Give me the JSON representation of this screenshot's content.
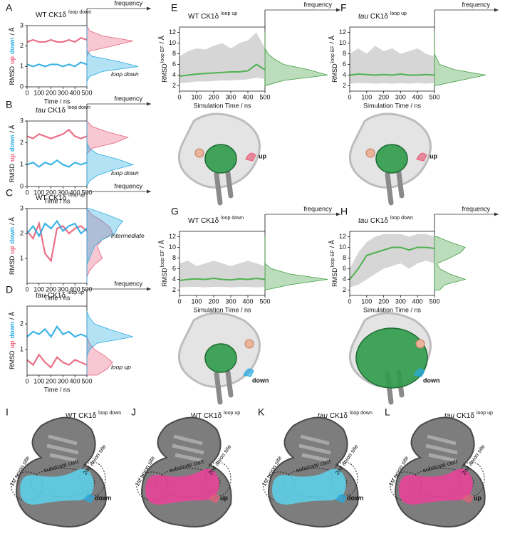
{
  "chart_data": [
    {
      "panel": "A",
      "type": "line",
      "title": {
        "main": "WT CK1δ",
        "sup": "loop down"
      },
      "ylabel": {
        "main": "RMSD",
        "unit": "/ Å"
      },
      "xlabel": "Time / ns",
      "frequency_label": "frequency",
      "annotation": "loop down",
      "x": [
        0,
        50,
        100,
        150,
        200,
        250,
        300,
        350,
        400,
        450,
        500
      ],
      "xlim": [
        0,
        500
      ],
      "xticks": [
        0,
        100,
        200,
        300,
        400,
        500
      ],
      "ylim": [
        0,
        3
      ],
      "yticks": [
        0,
        1,
        2,
        3
      ],
      "density_at": [
        0,
        0.25,
        0.5,
        0.75,
        1,
        1.25,
        1.5,
        1.75,
        2,
        2.25,
        2.5,
        2.75,
        3
      ],
      "series": [
        {
          "name": "up",
          "color": "#e8607a",
          "values": [
            2.2,
            2.3,
            2.2,
            2.2,
            2.3,
            2.2,
            2.2,
            2.3,
            2.2,
            2.4,
            2.3
          ],
          "density": [
            0,
            0,
            0,
            0,
            0,
            0,
            0,
            0.05,
            0.5,
            0.9,
            0.3,
            0.05,
            0
          ]
        },
        {
          "name": "down",
          "color": "#29abe2",
          "values": [
            1.1,
            1.0,
            1.1,
            1.0,
            1.1,
            1.1,
            1.0,
            1.1,
            1.0,
            1.2,
            1.1
          ],
          "density": [
            0,
            0,
            0.05,
            0.3,
            1.0,
            0.6,
            0.1,
            0,
            0,
            0,
            0,
            0,
            0
          ]
        }
      ]
    },
    {
      "panel": "B",
      "type": "line",
      "title": {
        "pre": "tau",
        "main": "CK1δ",
        "sup": "loop down"
      },
      "ylabel": {
        "main": "RMSD",
        "unit": "/ Å"
      },
      "xlabel": "Time / ns",
      "frequency_label": "frequency",
      "annotation": "loop down",
      "x": [
        0,
        50,
        100,
        150,
        200,
        250,
        300,
        350,
        400,
        450,
        500
      ],
      "xlim": [
        0,
        500
      ],
      "xticks": [
        0,
        100,
        200,
        300,
        400,
        500
      ],
      "ylim": [
        0,
        3
      ],
      "yticks": [
        0,
        1,
        2,
        3
      ],
      "density_at": [
        0,
        0.25,
        0.5,
        0.75,
        1,
        1.25,
        1.5,
        1.75,
        2,
        2.25,
        2.5,
        2.75,
        3
      ],
      "series": [
        {
          "name": "up",
          "color": "#e8607a",
          "values": [
            2.3,
            2.2,
            2.4,
            2.3,
            2.2,
            2.3,
            2.4,
            2.6,
            2.3,
            2.2,
            2.3
          ],
          "density": [
            0,
            0,
            0,
            0,
            0,
            0,
            0,
            0.1,
            0.55,
            0.8,
            0.4,
            0.1,
            0
          ]
        },
        {
          "name": "down",
          "color": "#29abe2",
          "values": [
            1.0,
            1.1,
            0.9,
            1.1,
            1.0,
            1.2,
            1.0,
            0.9,
            1.1,
            1.0,
            1.1
          ],
          "density": [
            0,
            0.05,
            0.2,
            0.5,
            0.9,
            0.6,
            0.2,
            0.05,
            0,
            0,
            0,
            0,
            0
          ]
        }
      ]
    },
    {
      "panel": "C",
      "type": "line",
      "title": {
        "main": "WT CK1δ",
        "sup": "loop up"
      },
      "ylabel": {
        "main": "RMSD",
        "unit": "/ Å"
      },
      "xlabel": "Time / ns",
      "frequency_label": "frequency",
      "annotation": "intermediate",
      "x": [
        0,
        50,
        100,
        150,
        200,
        250,
        300,
        350,
        400,
        450,
        500
      ],
      "xlim": [
        0,
        500
      ],
      "xticks": [
        0,
        100,
        200,
        300,
        400,
        500
      ],
      "ylim": [
        0,
        3
      ],
      "yticks": [
        1,
        2,
        3
      ],
      "density_at": [
        0,
        0.25,
        0.5,
        0.75,
        1,
        1.25,
        1.5,
        1.75,
        2,
        2.25,
        2.5,
        2.75,
        3
      ],
      "series": [
        {
          "name": "up",
          "color": "#e8607a",
          "values": [
            2.1,
            1.8,
            2.4,
            1.2,
            0.9,
            2.2,
            2.3,
            2.0,
            2.2,
            2.3,
            2.1
          ],
          "density": [
            0,
            0,
            0.05,
            0.15,
            0.3,
            0.25,
            0.2,
            0.3,
            0.5,
            0.45,
            0.3,
            0.1,
            0
          ]
        },
        {
          "name": "down",
          "color": "#29abe2",
          "values": [
            2.0,
            2.3,
            1.9,
            2.4,
            2.2,
            2.5,
            2.1,
            2.3,
            2.4,
            2.0,
            2.2
          ],
          "density": [
            0,
            0,
            0,
            0,
            0.05,
            0.1,
            0.15,
            0.3,
            0.55,
            0.6,
            0.7,
            0.4,
            0.05
          ]
        }
      ]
    },
    {
      "panel": "D",
      "type": "line",
      "title": {
        "pre": "tau",
        "main": "CK1δ",
        "sup": "loop up"
      },
      "ylabel": {
        "main": "RMSD",
        "unit": "/ Å"
      },
      "xlabel": "Time / ns",
      "frequency_label": "frequency",
      "annotation": "loop up",
      "x": [
        0,
        50,
        100,
        150,
        200,
        250,
        300,
        350,
        400,
        450,
        500
      ],
      "xlim": [
        0,
        500
      ],
      "xticks": [
        0,
        100,
        200,
        300,
        400,
        500
      ],
      "ylim": [
        0,
        2.7
      ],
      "yticks": [
        1,
        2
      ],
      "density_at": [
        0,
        0.25,
        0.5,
        0.75,
        1,
        1.25,
        1.5,
        1.75,
        2,
        2.25,
        2.5
      ],
      "series": [
        {
          "name": "up",
          "color": "#e8607a",
          "values": [
            0.6,
            0.4,
            0.8,
            0.5,
            0.3,
            0.7,
            0.5,
            0.4,
            0.6,
            0.5,
            0.4
          ],
          "density": [
            0.2,
            0.4,
            0.5,
            0.35,
            0.15,
            0.05,
            0,
            0,
            0,
            0,
            0
          ]
        },
        {
          "name": "down",
          "color": "#29abe2",
          "values": [
            1.5,
            1.7,
            1.6,
            1.8,
            1.5,
            1.9,
            1.6,
            1.7,
            1.5,
            1.6,
            1.5
          ],
          "density": [
            0,
            0,
            0,
            0,
            0.05,
            0.2,
            0.9,
            0.5,
            0.15,
            0.05,
            0
          ]
        }
      ]
    },
    {
      "panel": "E",
      "type": "band",
      "title": {
        "main": "WT CK1δ",
        "sup": "loop up"
      },
      "ylabel": {
        "main": "RMSD",
        "sup": "loop EF",
        "unit": "/ Å"
      },
      "xlabel": "Simulation Time / ns",
      "frequency_label": "frequency",
      "x": [
        0,
        50,
        100,
        150,
        200,
        250,
        300,
        350,
        400,
        450,
        500
      ],
      "xlim": [
        0,
        500
      ],
      "xticks": [
        0,
        100,
        200,
        300,
        400,
        500
      ],
      "ylim": [
        1,
        13
      ],
      "yticks": [
        2,
        4,
        6,
        8,
        10,
        12
      ],
      "density_at": [
        2,
        3,
        4,
        5,
        6,
        7,
        8,
        9,
        10,
        11,
        12
      ],
      "color": "#4fb24f",
      "band_color": "#d6d6d6",
      "density_color": "#3f9e3f",
      "values": [
        3.8,
        4.0,
        4.2,
        4.3,
        4.4,
        4.5,
        4.6,
        4.6,
        4.8,
        6.0,
        5.0
      ],
      "band_low": [
        2.5,
        2.6,
        2.8,
        2.8,
        2.9,
        3.0,
        3.0,
        3.1,
        3.2,
        3.5,
        3.3
      ],
      "band_high": [
        7.5,
        8.5,
        9,
        8.8,
        9.5,
        10,
        9,
        10,
        10.5,
        12,
        9
      ],
      "density": [
        0,
        0.3,
        1.0,
        0.7,
        0.3,
        0.15,
        0.05,
        0,
        0,
        0,
        0
      ]
    },
    {
      "panel": "F",
      "type": "band",
      "title": {
        "pre": "tau",
        "main": "CK1δ",
        "sup": "loop up"
      },
      "ylabel": {
        "main": "RMSD",
        "sup": "loop EF",
        "unit": "/ Å"
      },
      "xlabel": "Simulation Time / ns",
      "frequency_label": "frequency",
      "x": [
        0,
        50,
        100,
        150,
        200,
        250,
        300,
        350,
        400,
        450,
        500
      ],
      "xlim": [
        0,
        500
      ],
      "xticks": [
        0,
        100,
        200,
        300,
        400,
        500
      ],
      "ylim": [
        1,
        13
      ],
      "yticks": [
        2,
        4,
        6,
        8,
        10,
        12
      ],
      "density_at": [
        2,
        3,
        4,
        5,
        6,
        7,
        8,
        9,
        10,
        11,
        12
      ],
      "color": "#4fb24f",
      "band_color": "#d6d6d6",
      "density_color": "#3f9e3f",
      "values": [
        4.0,
        4.2,
        4.1,
        4.0,
        4.1,
        4.0,
        4.2,
        4.0,
        4.0,
        4.1,
        4.0
      ],
      "band_low": [
        2.4,
        2.5,
        2.5,
        2.4,
        2.5,
        2.4,
        2.5,
        2.4,
        2.5,
        2.4,
        2.5
      ],
      "band_high": [
        8,
        9,
        8,
        9.5,
        8.5,
        9,
        8,
        8.5,
        9,
        8,
        7.5
      ],
      "density": [
        0,
        0.5,
        1.0,
        0.4,
        0.1,
        0.05,
        0,
        0,
        0,
        0,
        0
      ]
    },
    {
      "panel": "G",
      "type": "band",
      "title": {
        "main": "WT CK1δ",
        "sup": "loop down"
      },
      "ylabel": {
        "main": "RMSD",
        "sup": "loop EF",
        "unit": "/ Å"
      },
      "xlabel": "Simulation Time / ns",
      "frequency_label": "frequency",
      "x": [
        0,
        50,
        100,
        150,
        200,
        250,
        300,
        350,
        400,
        450,
        500
      ],
      "xlim": [
        0,
        500
      ],
      "xticks": [
        0,
        100,
        200,
        300,
        400,
        500
      ],
      "ylim": [
        1,
        13
      ],
      "yticks": [
        2,
        4,
        6,
        8,
        10,
        12
      ],
      "density_at": [
        2,
        3,
        4,
        5,
        6,
        7,
        8,
        9,
        10,
        11,
        12
      ],
      "color": "#4fb24f",
      "band_color": "#d6d6d6",
      "density_color": "#3f9e3f",
      "values": [
        3.8,
        4.0,
        4.1,
        4.0,
        4.2,
        4.0,
        3.9,
        4.1,
        4.0,
        4.2,
        4.0
      ],
      "band_low": [
        2.5,
        2.6,
        2.6,
        2.5,
        2.6,
        2.6,
        2.5,
        2.6,
        2.6,
        2.5,
        2.6
      ],
      "band_high": [
        7,
        7.5,
        6.5,
        7,
        7.5,
        7,
        6.5,
        7,
        7.5,
        7,
        6.5
      ],
      "density": [
        0,
        0.4,
        1.0,
        0.4,
        0.1,
        0,
        0,
        0,
        0,
        0,
        0
      ]
    },
    {
      "panel": "H",
      "type": "band",
      "title": {
        "pre": "tau",
        "main": "CK1δ",
        "sup": "loop down"
      },
      "ylabel": {
        "main": "RMSD",
        "sup": "loop EF",
        "unit": "/ Å"
      },
      "xlabel": "Simulation Time / ns",
      "frequency_label": "frequency",
      "x": [
        0,
        50,
        100,
        150,
        200,
        250,
        300,
        350,
        400,
        450,
        500
      ],
      "xlim": [
        0,
        500
      ],
      "xticks": [
        0,
        100,
        200,
        300,
        400,
        500
      ],
      "ylim": [
        1,
        13
      ],
      "yticks": [
        2,
        4,
        6,
        8,
        10,
        12
      ],
      "density_at": [
        2,
        3,
        4,
        5,
        6,
        7,
        8,
        9,
        10,
        11,
        12
      ],
      "color": "#4fb24f",
      "band_color": "#d6d6d6",
      "density_color": "#3f9e3f",
      "values": [
        4.0,
        6.0,
        8.5,
        9.0,
        9.5,
        10.0,
        10.0,
        9.5,
        10.0,
        10.0,
        9.8
      ],
      "band_low": [
        2.5,
        3,
        4,
        5,
        6,
        6.5,
        7,
        6,
        7,
        7.5,
        7
      ],
      "band_high": [
        6,
        9,
        11,
        12,
        12.5,
        12.5,
        12.5,
        12,
        12.5,
        12.5,
        12
      ],
      "density": [
        0.1,
        0.2,
        0.6,
        0.3,
        0.1,
        0.05,
        0.3,
        0.5,
        0.6,
        0.3,
        0.05
      ]
    }
  ],
  "structures": [
    {
      "loop": "up"
    },
    {
      "loop": "up"
    },
    {
      "loop": "down"
    },
    {
      "loop": "down"
    }
  ],
  "surfaces": [
    {
      "panel": "I",
      "title": {
        "main": "WT CK1δ",
        "sup": "loop down"
      },
      "sites": [
        "1st anion site",
        "substrate cleft",
        "2nd anion site"
      ],
      "loop": "down",
      "color": "#5cd3ec"
    },
    {
      "panel": "J",
      "title": {
        "main": "WT CK1δ",
        "sup": "loop up"
      },
      "sites": [
        "1st anion site",
        "substrate cleft",
        "2nd anion site"
      ],
      "loop": "up",
      "color": "#ee3f9a"
    },
    {
      "panel": "K",
      "title": {
        "pre": "tau",
        "main": "CK1δ",
        "sup": "loop down"
      },
      "sites": [
        "1st anion site",
        "substrate cleft",
        "2nd anion site"
      ],
      "loop": "down",
      "color": "#5cd3ec"
    },
    {
      "panel": "L",
      "title": {
        "pre": "tau",
        "main": "CK1δ",
        "sup": "loop up"
      },
      "sites": [
        "1st anion site",
        "substrate cleft",
        "2nd anion site"
      ],
      "loop": "up",
      "color": "#ee3f9a"
    }
  ]
}
